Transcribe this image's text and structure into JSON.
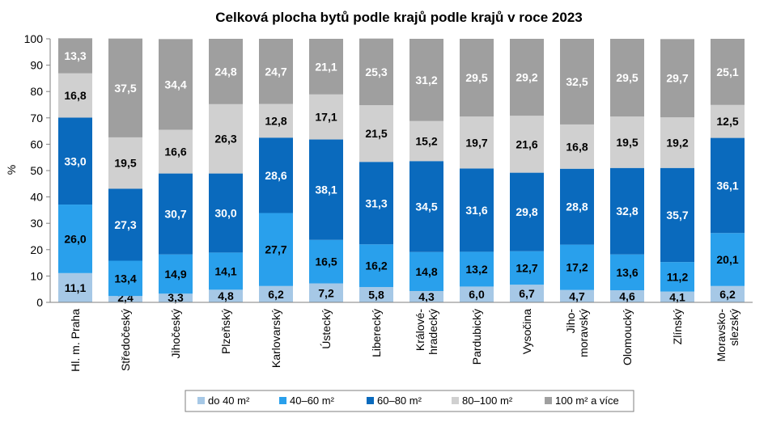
{
  "chart_data": {
    "type": "bar",
    "stacked": true,
    "title": "Celková plocha bytů podle krajů podle krajů v roce 2023",
    "xlabel": "",
    "ylabel": "%",
    "ylim": [
      0,
      100
    ],
    "yticks": [
      "0",
      "10",
      "20",
      "30",
      "40",
      "50",
      "60",
      "70",
      "80",
      "90",
      "100"
    ],
    "grid": false,
    "legend_position": "bottom",
    "categories": [
      [
        "Hl. m. Praha"
      ],
      [
        "Středočeský"
      ],
      [
        "Jihočeský"
      ],
      [
        "Plzeňský"
      ],
      [
        "Karlovarský"
      ],
      [
        "Ústecký"
      ],
      [
        "Liberecký"
      ],
      [
        "Králové-",
        "hradecký"
      ],
      [
        "Pardubický"
      ],
      [
        "Vysočina"
      ],
      [
        "Jiho-",
        "moravský"
      ],
      [
        "Olomoucký"
      ],
      [
        "Zlínský"
      ],
      [
        "Moravsko-",
        "slezský"
      ]
    ],
    "series": [
      {
        "name": "do 40 m²",
        "color": "#a6c8e6",
        "label_color": "#000000",
        "values": [
          11.1,
          2.4,
          3.3,
          4.8,
          6.2,
          7.2,
          5.8,
          4.3,
          6.0,
          6.7,
          4.7,
          4.6,
          4.1,
          6.2
        ],
        "labels": [
          "11,1",
          "2,4",
          "3,3",
          "4,8",
          "6,2",
          "7,2",
          "5,8",
          "4,3",
          "6,0",
          "6,7",
          "4,7",
          "4,6",
          "4,1",
          "6,2"
        ]
      },
      {
        "name": "40–60 m²",
        "color": "#29a0ec",
        "label_color": "#000000",
        "values": [
          26.0,
          13.4,
          14.9,
          14.1,
          27.7,
          16.5,
          16.2,
          14.8,
          13.2,
          12.7,
          17.2,
          13.6,
          11.2,
          20.1
        ],
        "labels": [
          "26,0",
          "13,4",
          "14,9",
          "14,1",
          "27,7",
          "16,5",
          "16,2",
          "14,8",
          "13,2",
          "12,7",
          "17,2",
          "13,6",
          "11,2",
          "20,1"
        ]
      },
      {
        "name": "60–80 m²",
        "color": "#0a6abd",
        "label_color": "#ffffff",
        "values": [
          33.0,
          27.3,
          30.7,
          30.0,
          28.6,
          38.1,
          31.3,
          34.5,
          31.6,
          29.8,
          28.8,
          32.8,
          35.7,
          36.1
        ],
        "labels": [
          "33,0",
          "27,3",
          "30,7",
          "30,0",
          "28,6",
          "38,1",
          "31,3",
          "34,5",
          "31,6",
          "29,8",
          "28,8",
          "32,8",
          "35,7",
          "36,1"
        ]
      },
      {
        "name": "80–100 m²",
        "color": "#d0d0d0",
        "label_color": "#000000",
        "values": [
          16.8,
          19.5,
          16.6,
          26.3,
          12.8,
          17.1,
          21.5,
          15.2,
          19.7,
          21.6,
          16.8,
          19.5,
          19.2,
          12.5
        ],
        "labels": [
          "16,8",
          "19,5",
          "16,6",
          "26,3",
          "12,8",
          "17,1",
          "21,5",
          "15,2",
          "19,7",
          "21,6",
          "16,8",
          "19,5",
          "19,2",
          "12,5"
        ]
      },
      {
        "name": "100 m² a více",
        "color": "#9f9f9f",
        "label_color": "#ffffff",
        "values": [
          13.3,
          37.5,
          34.4,
          24.8,
          24.7,
          21.1,
          25.3,
          31.2,
          29.5,
          29.2,
          32.5,
          29.5,
          29.7,
          25.1
        ],
        "labels": [
          "13,3",
          "37,5",
          "34,4",
          "24,8",
          "24,7",
          "21,1",
          "25,3",
          "31,2",
          "29,5",
          "29,2",
          "32,5",
          "29,5",
          "29,7",
          "25,1"
        ]
      }
    ]
  }
}
